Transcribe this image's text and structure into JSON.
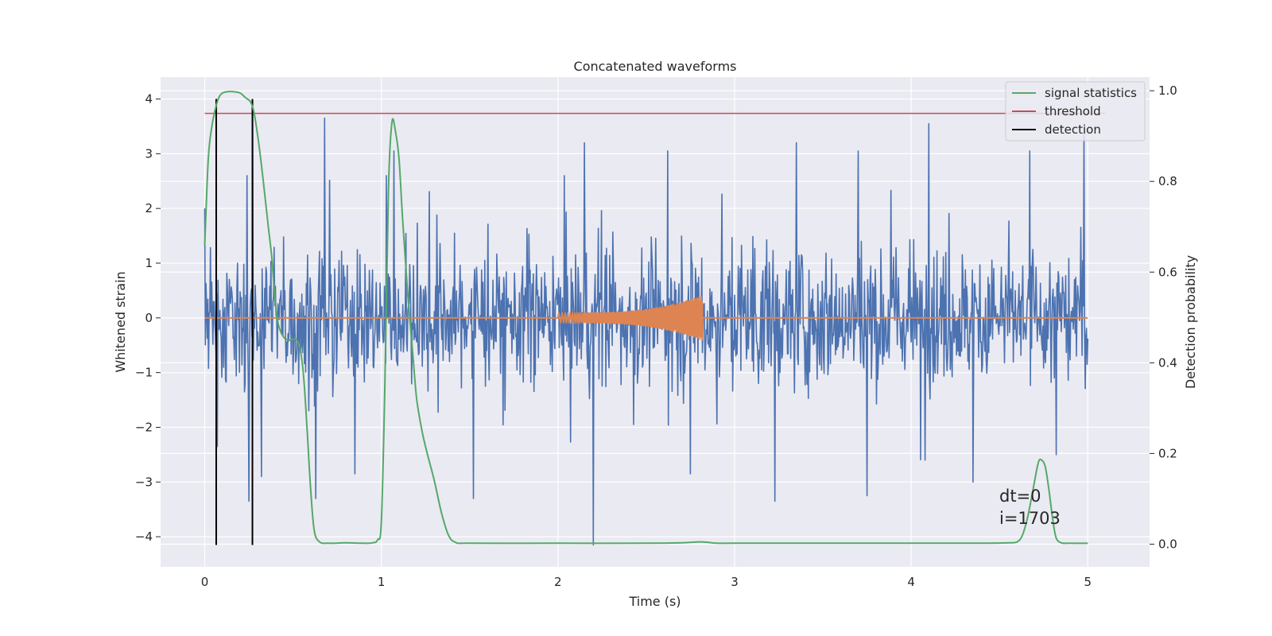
{
  "chart_data": {
    "type": "line",
    "title": "Concatenated waveforms",
    "xlabel": "Time (s)",
    "ylabel": "Whitened strain",
    "ylabel_right": "Detection probability",
    "xlim": [
      -0.25,
      5.35
    ],
    "ylim": [
      -4.55,
      4.4
    ],
    "ylim_right": [
      -0.05,
      1.03
    ],
    "x_ticks": [
      0,
      1,
      2,
      3,
      4,
      5
    ],
    "y_ticks": [
      -4,
      -3,
      -2,
      -1,
      0,
      1,
      2,
      3,
      4
    ],
    "y_ticks_right": [
      0.0,
      0.2,
      0.4,
      0.6,
      0.8,
      1.0
    ],
    "x_tick_labels": [
      "0",
      "1",
      "2",
      "3",
      "4",
      "5"
    ],
    "y_tick_labels": [
      "−4",
      "−3",
      "−2",
      "−1",
      "0",
      "1",
      "2",
      "3",
      "4"
    ],
    "y_tick_labels_right": [
      "0.0",
      "0.2",
      "0.4",
      "0.6",
      "0.8",
      "1.0"
    ],
    "grid": true,
    "legend_position": "top-right",
    "series": [
      {
        "name": "signal statistics",
        "axis": "right",
        "color": "#55a868",
        "x": [
          0.0,
          0.02,
          0.04,
          0.06,
          0.08,
          0.1,
          0.13,
          0.16,
          0.2,
          0.23,
          0.26,
          0.28,
          0.3,
          0.32,
          0.34,
          0.36,
          0.38,
          0.4,
          0.42,
          0.45,
          0.48,
          0.5,
          0.52,
          0.54,
          0.56,
          0.58,
          0.6,
          0.62,
          0.65,
          0.7,
          0.8,
          0.9,
          0.95,
          0.98,
          1.0,
          1.02,
          1.04,
          1.06,
          1.08,
          1.1,
          1.12,
          1.15,
          1.18,
          1.2,
          1.23,
          1.26,
          1.3,
          1.34,
          1.38,
          1.42,
          1.5,
          2.0,
          2.5,
          2.7,
          2.8,
          2.85,
          2.9,
          3.0,
          3.5,
          4.0,
          4.4,
          4.55,
          4.6,
          4.63,
          4.66,
          4.69,
          4.72,
          4.74,
          4.76,
          4.78,
          4.8,
          4.82,
          4.85,
          4.9,
          5.0
        ],
        "values": [
          0.66,
          0.85,
          0.92,
          0.96,
          0.985,
          0.995,
          0.998,
          0.998,
          0.995,
          0.985,
          0.975,
          0.95,
          0.9,
          0.84,
          0.77,
          0.7,
          0.63,
          0.53,
          0.48,
          0.455,
          0.45,
          0.452,
          0.45,
          0.43,
          0.37,
          0.25,
          0.12,
          0.03,
          0.005,
          0.002,
          0.003,
          0.002,
          0.003,
          0.01,
          0.05,
          0.35,
          0.78,
          0.93,
          0.91,
          0.85,
          0.72,
          0.55,
          0.41,
          0.32,
          0.25,
          0.2,
          0.14,
          0.07,
          0.02,
          0.004,
          0.002,
          0.002,
          0.002,
          0.003,
          0.005,
          0.004,
          0.002,
          0.002,
          0.002,
          0.002,
          0.002,
          0.003,
          0.005,
          0.02,
          0.06,
          0.12,
          0.18,
          0.185,
          0.17,
          0.12,
          0.06,
          0.015,
          0.003,
          0.002,
          0.002
        ]
      },
      {
        "name": "threshold",
        "axis": "right",
        "color": "#c44e52",
        "x": [
          0,
          5.1
        ],
        "values": [
          0.95,
          0.95
        ]
      },
      {
        "name": "detection",
        "axis": "left",
        "color": "#000000",
        "vlines": [
          0.065,
          0.27
        ],
        "ymin": -4.15,
        "ymax": 4.0
      },
      {
        "name": "",
        "axis": "left",
        "color": "#4c72b0",
        "kind": "noise",
        "x_range": [
          0,
          5
        ],
        "typical_range": [
          -1.5,
          1.5
        ],
        "extremes": [
          {
            "x": 0.0,
            "y": 2.0
          },
          {
            "x": 0.07,
            "y": -2.35
          },
          {
            "x": 0.24,
            "y": 2.6
          },
          {
            "x": 0.25,
            "y": -3.35
          },
          {
            "x": 0.27,
            "y": 3.95
          },
          {
            "x": 0.32,
            "y": -2.9
          },
          {
            "x": 0.68,
            "y": 3.65
          },
          {
            "x": 0.63,
            "y": -3.3
          },
          {
            "x": 0.85,
            "y": -2.85
          },
          {
            "x": 1.07,
            "y": 3.05
          },
          {
            "x": 1.52,
            "y": -3.3
          },
          {
            "x": 2.15,
            "y": 3.2
          },
          {
            "x": 2.2,
            "y": -4.15
          },
          {
            "x": 2.62,
            "y": 3.05
          },
          {
            "x": 2.75,
            "y": -2.85
          },
          {
            "x": 3.35,
            "y": 3.2
          },
          {
            "x": 3.23,
            "y": -3.35
          },
          {
            "x": 3.7,
            "y": 3.05
          },
          {
            "x": 3.75,
            "y": -3.25
          },
          {
            "x": 4.1,
            "y": 3.55
          },
          {
            "x": 4.35,
            "y": -3.0
          },
          {
            "x": 4.67,
            "y": 3.05
          },
          {
            "x": 4.82,
            "y": -2.5
          },
          {
            "x": 4.98,
            "y": 3.4
          }
        ]
      },
      {
        "name": "",
        "axis": "left",
        "color": "#dd8452",
        "kind": "chirp",
        "x_range": [
          2.0,
          2.82
        ],
        "values_start_amplitude": 0.09,
        "values_peak_amplitude": 0.42
      }
    ],
    "annotations": [
      "dt=0",
      "i=1703"
    ]
  }
}
